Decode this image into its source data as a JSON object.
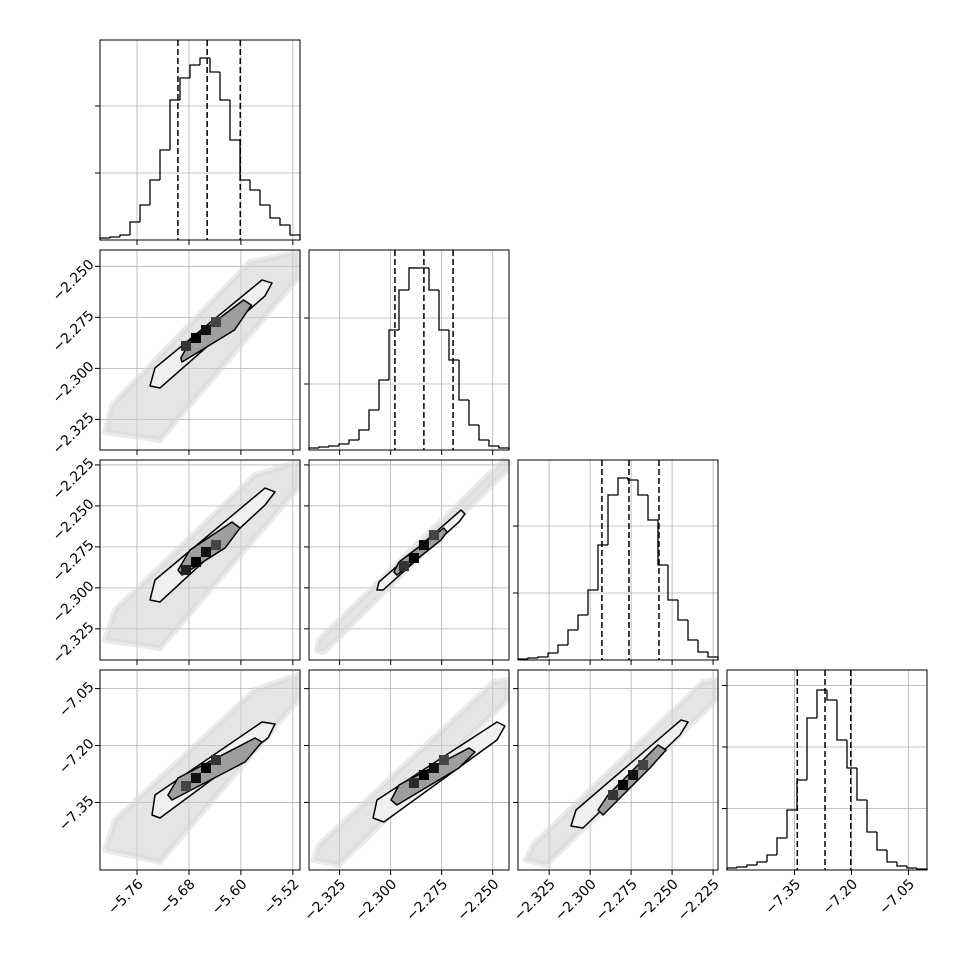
{
  "chart_data": [
    {
      "type": "histogram",
      "color": "#000000",
      "bins": [
        -5.817,
        -5.8016,
        -5.7862,
        -5.7708,
        -5.7554,
        -5.74,
        -5.7246,
        -5.7092,
        -5.6938,
        -5.6784,
        -5.663,
        -5.6476,
        -5.6322,
        -5.6168,
        -5.6014,
        -5.586,
        -5.5706,
        -5.5552,
        -5.5398,
        -5.5244,
        -5.509
      ],
      "values": [
        30,
        45,
        75,
        269,
        522,
        896,
        1343,
        2090,
        2418,
        2612,
        2716,
        2507,
        2090,
        1493,
        896,
        746,
        522,
        328,
        224,
        75
      ],
      "quantiles": [
        -5.697,
        -5.652,
        -5.601
      ],
      "xlim": [
        -5.817,
        -5.509
      ],
      "xticks": [
        -5.76,
        -5.68,
        -5.6,
        -5.52
      ],
      "ylim": [
        0,
        2985
      ],
      "yticks": [
        1000,
        2000
      ]
    },
    {
      "type": "hist2d",
      "color": "#000000",
      "xlim": [
        -5.817,
        -5.509
      ],
      "xticks": [
        -5.76,
        -5.68,
        -5.6,
        -5.52
      ],
      "ylim": [
        -2.34,
        -2.242
      ],
      "yticks": [
        {
          "value": -2.325,
          "label": "−2.325"
        },
        {
          "value": -2.3,
          "label": "−2.300"
        },
        {
          "value": -2.275,
          "label": "−2.275"
        },
        {
          "value": -2.25,
          "label": "−2.250"
        }
      ],
      "cloud": {
        "x": [
          -5.8093,
          -5.7985,
          -5.586,
          -5.5121,
          -5.5121,
          -5.7246
        ],
        "y": [
          -2.3312,
          -2.318,
          -2.2479,
          -2.243,
          -2.2557,
          -2.3351
        ]
      },
      "contours": [
        {
          "x": [
            -5.74,
            -5.7323,
            -5.5675,
            -5.5521,
            -5.5629,
            -5.7246
          ],
          "y": [
            -2.3086,
            -2.2998,
            -2.2567,
            -2.2582,
            -2.2645,
            -2.3096
          ]
        },
        {
          "x": [
            -5.6925,
            -5.6771,
            -5.596,
            -5.5837,
            -5.6098,
            -5.6907
          ],
          "y": [
            -2.2949,
            -2.2861,
            -2.2665,
            -2.269,
            -2.2812,
            -2.2969
          ]
        }
      ],
      "cells": {
        "x": [
          -5.6692,
          -5.6538,
          -5.6846,
          -5.6384
        ],
        "y": [
          -2.2851,
          -2.2812,
          -2.289,
          -2.2773
        ],
        "values": [
          1,
          0.9,
          0.7,
          0.6
        ]
      }
    },
    {
      "type": "histogram",
      "color": "#000000",
      "bins": [
        -2.34,
        -2.3351,
        -2.3302,
        -2.3253,
        -2.3204,
        -2.3155,
        -2.3106,
        -2.3057,
        -2.3008,
        -2.2959,
        -2.291,
        -2.2861,
        -2.2812,
        -2.2763,
        -2.2714,
        -2.2665,
        -2.2616,
        -2.2567,
        -2.2518,
        -2.2469,
        -2.242
      ],
      "values": [
        30,
        45,
        61,
        91,
        152,
        303,
        606,
        1061,
        1818,
        2424,
        2758,
        2758,
        2424,
        1818,
        1364,
        758,
        379,
        152,
        61,
        30
      ],
      "quantiles": [
        -2.2979,
        -2.2837,
        -2.2694
      ],
      "xlim": [
        -2.34,
        -2.242
      ],
      "xticks": [
        -2.325,
        -2.3,
        -2.275,
        -2.25
      ],
      "ylim": [
        0,
        3030
      ],
      "yticks": [
        1000,
        2000
      ]
    },
    {
      "type": "hist2d",
      "color": "#000000",
      "xlim": [
        -5.817,
        -5.509
      ],
      "xticks": [
        -5.76,
        -5.68,
        -5.6,
        -5.52
      ],
      "ylim": [
        -2.344,
        -2.222
      ],
      "yticks": [
        {
          "value": -2.325,
          "label": "−2.325"
        },
        {
          "value": -2.3,
          "label": "−2.300"
        },
        {
          "value": -2.275,
          "label": "−2.275"
        },
        {
          "value": -2.25,
          "label": "−2.250"
        },
        {
          "value": -2.225,
          "label": "−2.225"
        }
      ],
      "cloud": {
        "x": [
          -5.8093,
          -5.7939,
          -5.5783,
          -5.5121,
          -5.5121,
          -5.7246
        ],
        "y": [
          -2.3318,
          -2.3135,
          -2.2312,
          -2.2232,
          -2.2391,
          -2.3367
        ]
      },
      "contours": [
        {
          "x": [
            -5.74,
            -5.7323,
            -5.5629,
            -5.5475,
            -5.5629,
            -5.7246
          ],
          "y": [
            -2.3074,
            -2.2952,
            -2.2391,
            -2.2415,
            -2.2495,
            -2.3086
          ]
        },
        {
          "x": [
            -5.6969,
            -5.6784,
            -5.6137,
            -5.6014,
            -5.6245,
            -5.6907
          ],
          "y": [
            -2.2891,
            -2.2769,
            -2.2598,
            -2.2635,
            -2.2757,
            -2.2922
          ]
        }
      ],
      "cells": {
        "x": [
          -5.6692,
          -5.6538,
          -5.6846,
          -5.6384
        ],
        "y": [
          -2.2842,
          -2.2781,
          -2.2891,
          -2.2739
        ],
        "values": [
          1,
          0.9,
          0.8,
          0.6
        ]
      }
    },
    {
      "type": "hist2d",
      "color": "#000000",
      "xlim": [
        -2.34,
        -2.242
      ],
      "xticks": [
        -2.325,
        -2.3,
        -2.275,
        -2.25
      ],
      "ylim": [
        -2.344,
        -2.222
      ],
      "yticks": [
        -2.325,
        -2.3,
        -2.275,
        -2.25,
        -2.225
      ],
      "cloud": {
        "x": [
          -2.3361,
          -2.3351,
          -2.2445,
          -2.242,
          -2.243,
          -2.3327
        ],
        "y": [
          -2.3379,
          -2.3318,
          -2.222,
          -2.2232,
          -2.2281,
          -2.3391
        ]
      },
      "contours": [
        {
          "x": [
            -2.3067,
            -2.3057,
            -2.2655,
            -2.2636,
            -2.2665,
            -2.3037
          ],
          "y": [
            -2.3013,
            -2.2964,
            -2.2525,
            -2.2549,
            -2.2598,
            -2.3013
          ]
        },
        {
          "x": [
            -2.2984,
            -2.2959,
            -2.2739,
            -2.2724,
            -2.2753,
            -2.2969
          ],
          "y": [
            -2.2903,
            -2.2842,
            -2.2635,
            -2.2659,
            -2.2708,
            -2.2922
          ]
        }
      ],
      "cells": {
        "x": [
          -2.2886,
          -2.2837,
          -2.2935,
          -2.2788
        ],
        "y": [
          -2.2818,
          -2.2739,
          -2.2867,
          -2.2678
        ],
        "values": [
          1,
          0.95,
          0.7,
          0.6
        ]
      }
    },
    {
      "type": "histogram",
      "color": "#000000",
      "bins": [
        -2.344,
        -2.3379,
        -2.3318,
        -2.3257,
        -2.3196,
        -2.3135,
        -2.3074,
        -2.3013,
        -2.2952,
        -2.2891,
        -2.283,
        -2.2769,
        -2.2708,
        -2.2647,
        -2.2586,
        -2.2525,
        -2.2464,
        -2.2403,
        -2.2342,
        -2.2281,
        -2.222
      ],
      "values": [
        15,
        30,
        45,
        104,
        224,
        448,
        672,
        1045,
        1716,
        2463,
        2716,
        2687,
        2463,
        2090,
        1418,
        896,
        597,
        299,
        119,
        45
      ],
      "quantiles": [
        -2.2928,
        -2.2763,
        -2.258
      ],
      "xlim": [
        -2.344,
        -2.222
      ],
      "xticks": [
        -2.325,
        -2.3,
        -2.275,
        -2.25,
        -2.225
      ],
      "ylim": [
        0,
        2985
      ],
      "yticks": [
        1000,
        2000
      ]
    },
    {
      "type": "hist2d",
      "color": "#000000",
      "xlim": [
        -5.817,
        -5.509
      ],
      "xticks": [
        {
          "value": -5.76,
          "label": "−5.76"
        },
        {
          "value": -5.68,
          "label": "−5.68"
        },
        {
          "value": -5.6,
          "label": "−5.60"
        },
        {
          "value": -5.52,
          "label": "−5.52"
        }
      ],
      "ylim": [
        -7.528,
        -7.001
      ],
      "yticks": [
        {
          "value": -7.35,
          "label": "−7.35"
        },
        {
          "value": -7.2,
          "label": "−7.20"
        },
        {
          "value": -7.05,
          "label": "−7.05"
        }
      ],
      "cloud": {
        "x": [
          -5.8093,
          -5.7939,
          -5.5783,
          -5.5121,
          -5.5121,
          -5.7246
        ],
        "y": [
          -7.4753,
          -7.3963,
          -7.0537,
          -7.0142,
          -7.0801,
          -7.5069
        ]
      },
      "contours": [
        {
          "x": [
            -5.7369,
            -5.7323,
            -5.5675,
            -5.5475,
            -5.5583,
            -5.7246
          ],
          "y": [
            -7.3831,
            -7.3304,
            -7.138,
            -7.1433,
            -7.1802,
            -7.391
          ]
        },
        {
          "x": [
            -5.7123,
            -5.6969,
            -5.5783,
            -5.5675,
            -5.5937,
            -5.7061
          ],
          "y": [
            -7.3304,
            -7.2856,
            -7.1802,
            -7.1907,
            -7.2434,
            -7.3436
          ]
        }
      ],
      "cells": {
        "x": [
          -5.6538,
          -5.6692,
          -5.6384,
          -5.6846
        ],
        "y": [
          -7.2592,
          -7.2856,
          -7.2382,
          -7.3067
        ],
        "values": [
          1,
          0.9,
          0.7,
          0.6
        ]
      }
    },
    {
      "type": "hist2d",
      "color": "#000000",
      "xlim": [
        -2.34,
        -2.242
      ],
      "xticks": [
        {
          "value": -2.325,
          "label": "−2.325"
        },
        {
          "value": -2.3,
          "label": "−2.300"
        },
        {
          "value": -2.275,
          "label": "−2.275"
        },
        {
          "value": -2.25,
          "label": "−2.250"
        }
      ],
      "ylim": [
        -7.528,
        -7.001
      ],
      "yticks": [
        -7.35,
        -7.2,
        -7.05
      ],
      "cloud": {
        "x": [
          -2.3376,
          -2.3351,
          -2.2494,
          -2.243,
          -2.243,
          -2.3253
        ],
        "y": [
          -7.5017,
          -7.4621,
          -7.0326,
          -7.0273,
          -7.0801,
          -7.5148
        ]
      },
      "contours": [
        {
          "x": [
            -2.3086,
            -2.3067,
            -2.2479,
            -2.244,
            -2.2479,
            -2.3033
          ],
          "y": [
            -7.391,
            -7.3436,
            -7.138,
            -7.1486,
            -7.1855,
            -7.4015
          ]
        },
        {
          "x": [
            -2.2998,
            -2.2959,
            -2.2616,
            -2.2587,
            -2.2665,
            -2.2969
          ],
          "y": [
            -7.3436,
            -7.304,
            -7.2065,
            -7.2171,
            -7.2592,
            -7.3567
          ]
        }
      ],
      "cells": {
        "x": [
          -2.2837,
          -2.2788,
          -2.2886,
          -2.2739
        ],
        "y": [
          -7.2777,
          -7.2592,
          -7.2988,
          -7.2382
        ],
        "values": [
          1,
          0.9,
          0.75,
          0.6
        ]
      }
    },
    {
      "type": "hist2d",
      "color": "#000000",
      "xlim": [
        -2.344,
        -2.222
      ],
      "xticks": [
        {
          "value": -2.325,
          "label": "−2.325"
        },
        {
          "value": -2.3,
          "label": "−2.300"
        },
        {
          "value": -2.275,
          "label": "−2.275"
        },
        {
          "value": -2.25,
          "label": "−2.250"
        },
        {
          "value": -2.225,
          "label": "−2.225"
        }
      ],
      "ylim": [
        -7.528,
        -7.001
      ],
      "yticks": [
        -7.35,
        -7.2,
        -7.05
      ],
      "cloud": {
        "x": [
          -2.3391,
          -2.3349,
          -2.2312,
          -2.2232,
          -2.2232,
          -2.3269
        ],
        "y": [
          -7.5017,
          -7.4621,
          -7.0326,
          -7.0273,
          -7.0801,
          -7.5148
        ]
      },
      "contours": [
        {
          "x": [
            -2.3117,
            -2.3086,
            -2.2446,
            -2.2403,
            -2.2452,
            -2.3044
          ],
          "y": [
            -7.4121,
            -7.3699,
            -7.1328,
            -7.138,
            -7.1723,
            -7.4173
          ]
        },
        {
          "x": [
            -2.2952,
            -2.2891,
            -2.2586,
            -2.2537,
            -2.2635,
            -2.2921
          ],
          "y": [
            -7.3699,
            -7.3304,
            -7.1987,
            -7.2118,
            -7.2592,
            -7.3831
          ]
        }
      ],
      "cells": {
        "x": [
          -2.2799,
          -2.2738,
          -2.286,
          -2.2677
        ],
        "y": [
          -7.304,
          -7.2777,
          -7.3304,
          -7.2513
        ],
        "values": [
          1,
          0.9,
          0.7,
          0.6
        ]
      }
    },
    {
      "type": "histogram",
      "color": "#000000",
      "bins": [
        -7.528,
        -7.5017,
        -7.4753,
        -7.449,
        -7.4226,
        -7.3963,
        -7.3699,
        -7.3436,
        -7.3172,
        -7.2909,
        -7.2645,
        -7.2382,
        -7.2118,
        -7.1855,
        -7.1591,
        -7.1328,
        -7.1064,
        -7.0801,
        -7.0537,
        -7.0274,
        -7.001
      ],
      "values": [
        33,
        49,
        81,
        130,
        244,
        520,
        976,
        1463,
        2472,
        2927,
        2764,
        2114,
        1659,
        1138,
        618,
        325,
        130,
        65,
        33,
        16
      ],
      "quantiles": [
        -7.3428,
        -7.2697,
        -7.2019
      ],
      "xlim": [
        -7.528,
        -7.001
      ],
      "xticks": [
        {
          "value": -7.35,
          "label": "−7.35"
        },
        {
          "value": -7.2,
          "label": "−7.20"
        },
        {
          "value": -7.05,
          "label": "−7.05"
        }
      ],
      "ylim": [
        0,
        3252
      ],
      "yticks": [
        1000,
        2000,
        3000
      ]
    }
  ]
}
